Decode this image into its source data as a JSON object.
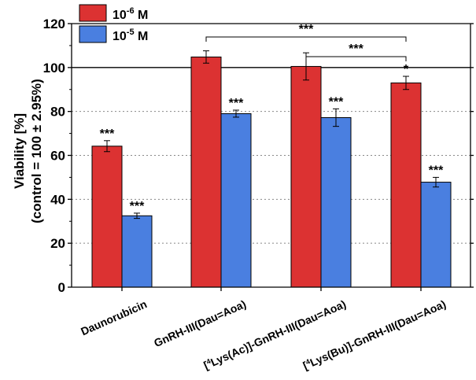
{
  "chart_data": {
    "type": "bar",
    "title": "",
    "xlabel": "",
    "ylabel": "Viability [%]",
    "ylabel2": "(control = 100 ± 2.95%)",
    "ylim": [
      0,
      120
    ],
    "yticks": [
      0,
      20,
      40,
      60,
      80,
      100,
      120
    ],
    "grid": "dotted horizontal at 20, 40, 60, 80; solid reference at 100",
    "categories": [
      "Daunorubicin",
      "GnRH-III(Dau=Aoa)",
      "[⁴Lys(Ac)]-GnRH-III(Dau=Aoa)",
      "[⁴Lys(Bu)]-GnRH-III(Dau=Aoa)"
    ],
    "category_sup": [
      "",
      "",
      "4",
      "4"
    ],
    "category_text": [
      "Daunorubicin",
      "GnRH-III(Dau=Aoa)",
      "Lys(Ac)]-GnRH-III(Dau=Aoa)",
      "Lys(Bu)]-GnRH-III(Dau=Aoa)"
    ],
    "series": [
      {
        "name": "10⁻⁶ M",
        "legend_base": "10",
        "legend_exp": "-6",
        "legend_unit": " M",
        "color": "#dc3232",
        "values": [
          64.2,
          104.8,
          100.5,
          93.0
        ],
        "errors": [
          2.5,
          2.8,
          6.2,
          3.0
        ],
        "significance": [
          "***",
          "",
          "",
          "*"
        ]
      },
      {
        "name": "10⁻⁵ M",
        "legend_base": "10",
        "legend_exp": "-5",
        "legend_unit": " M",
        "color": "#4a7fe0",
        "values": [
          32.5,
          79.0,
          77.2,
          47.8
        ],
        "errors": [
          1.2,
          1.6,
          4.0,
          2.2
        ],
        "significance": [
          "***",
          "***",
          "***",
          "***"
        ]
      }
    ],
    "comparisons": [
      {
        "from": "GnRH-III(Dau=Aoa)",
        "to": "[⁴Lys(Bu)]-GnRH-III(Dau=Aoa)",
        "label": "***"
      },
      {
        "from": "[⁴Lys(Ac)]-GnRH-III(Dau=Aoa)",
        "to": "[⁴Lys(Bu)]-GnRH-III(Dau=Aoa)",
        "label": "***"
      }
    ]
  }
}
